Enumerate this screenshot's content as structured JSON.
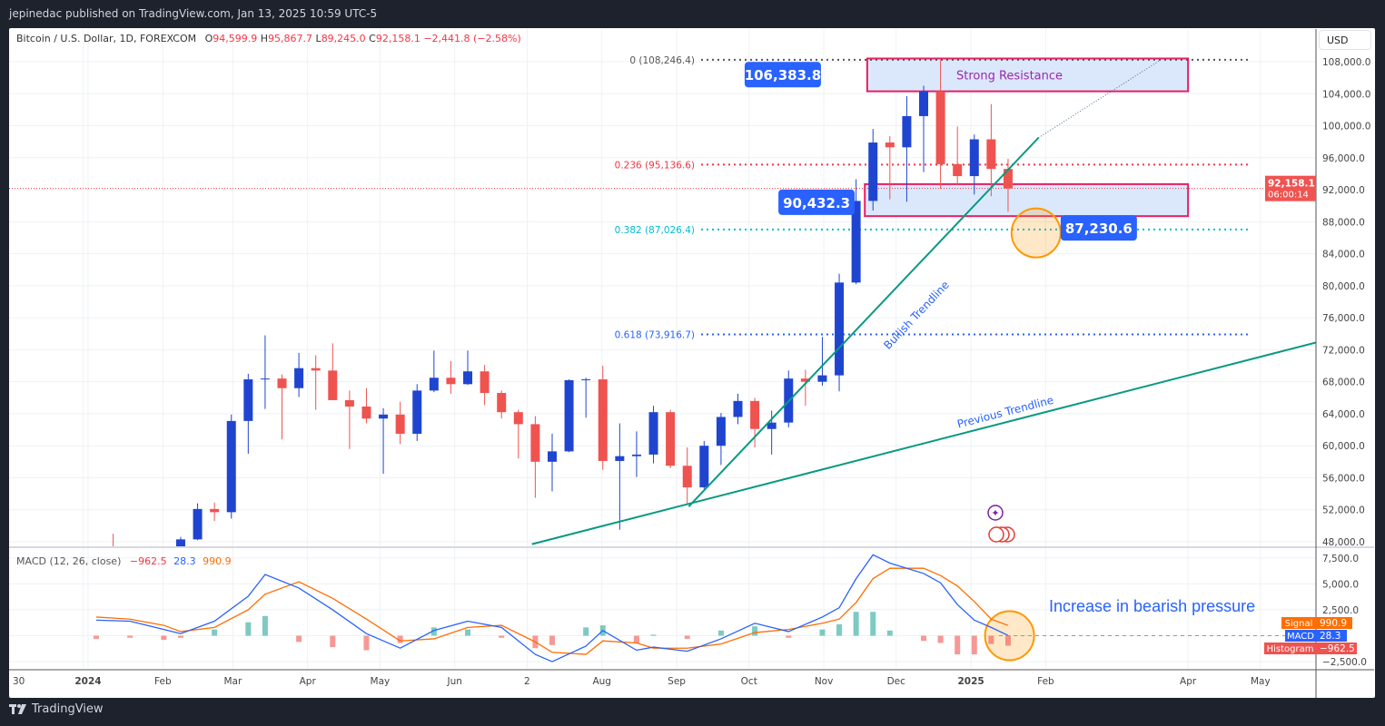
{
  "header": {
    "published": "jepinedac published on TradingView.com, Jan 13, 2025 10:59 UTC-5"
  },
  "legend": {
    "symbol": "Bitcoin / U.S. Dollar, 1D, FOREXCOM",
    "o_label": "O",
    "o": "94,599.9",
    "h_label": "H",
    "h": "95,867.7",
    "l_label": "L",
    "l": "89,245.0",
    "c_label": "C",
    "c": "92,158.1",
    "change": "−2,441.8 (−2.58%)"
  },
  "macd_legend": {
    "title": "MACD (12, 26, close)",
    "histogram": "−962.5",
    "macd": "28.3",
    "signal": "990.9"
  },
  "price_axis": {
    "currency": "USD",
    "ticks": [
      "108,000.0",
      "104,000.0",
      "100,000.0",
      "96,000.0",
      "92,000.0",
      "88,000.0",
      "84,000.0",
      "80,000.0",
      "76,000.0",
      "72,000.0",
      "68,000.0",
      "64,000.0",
      "60,000.0",
      "56,000.0",
      "52,000.0",
      "48,000.0"
    ],
    "last_price": "92,158.1",
    "countdown": "06:00:14"
  },
  "macd_axis": {
    "ticks": [
      "7,500.0",
      "5,000.0",
      "2,500.0",
      "−2,500.0"
    ],
    "tags": [
      {
        "label": "Signal",
        "value": "990.9"
      },
      {
        "label": "MACD",
        "value": "28.3"
      },
      {
        "label": "Histogram",
        "value": "−962.5"
      }
    ]
  },
  "time_axis": {
    "labels": [
      [
        "30",
        "2023-12-30"
      ],
      [
        "2024",
        "2024-01-01"
      ],
      [
        "Feb",
        "2024-02-01"
      ],
      [
        "Mar",
        "2024-03-01"
      ],
      [
        "Apr",
        "2024-04-01"
      ],
      [
        "May",
        "2024-05-01"
      ],
      [
        "Jun",
        "2024-06-01"
      ],
      [
        "2",
        "2024-07-01"
      ],
      [
        "Aug",
        "2024-08-01"
      ],
      [
        "Sep",
        "2024-09-01"
      ],
      [
        "Oct",
        "2024-10-01"
      ],
      [
        "Nov",
        "2024-11-01"
      ],
      [
        "Dec",
        "2024-12-01"
      ],
      [
        "2025",
        "2025-01-01"
      ],
      [
        "Feb",
        "2025-02-01"
      ],
      [
        "Apr",
        "2025-04-01"
      ],
      [
        "May",
        "2025-05-01"
      ]
    ]
  },
  "footer": {
    "brand": "TradingView"
  },
  "colors": {
    "up": "#1f45d0",
    "down": "#ef5350",
    "macd": "#2962ff",
    "signal": "#ff6d00",
    "hist_up": "#26a69a",
    "hist_down": "#ef5350",
    "trendline": "#089981",
    "box_border": "#e91e63",
    "box_fill": "#dbe8fb",
    "fib0": "#555555",
    "fib236": "#f23645",
    "fib382": "#00bcd4",
    "fib618": "#2962ff",
    "tag_blue": "#2962ff",
    "circle": "#ff9800"
  },
  "chart_data": {
    "type": "candlestick",
    "interval_shown": "1D",
    "ylim": [
      48000,
      108000
    ],
    "grid": true,
    "candles_weekly_ohlc": [
      [
        "2024-01-01",
        42300,
        45900,
        40700,
        43900
      ],
      [
        "2024-01-08",
        43900,
        49000,
        41500,
        41700
      ],
      [
        "2024-01-15",
        41700,
        43200,
        40300,
        41600
      ],
      [
        "2024-01-22",
        41600,
        42200,
        38500,
        42000
      ],
      [
        "2024-01-29",
        42000,
        43800,
        41800,
        42600
      ],
      [
        "2024-02-05",
        42600,
        48600,
        42300,
        48300
      ],
      [
        "2024-02-12",
        48300,
        52800,
        48200,
        52100
      ],
      [
        "2024-02-19",
        52100,
        52900,
        50600,
        51700
      ],
      [
        "2024-02-26",
        51700,
        63900,
        50900,
        63100
      ],
      [
        "2024-03-04",
        63100,
        69000,
        59000,
        68300
      ],
      [
        "2024-03-11",
        68300,
        73800,
        64600,
        68400
      ],
      [
        "2024-03-18",
        68400,
        68900,
        60800,
        67200
      ],
      [
        "2024-03-25",
        67200,
        71600,
        66100,
        69700
      ],
      [
        "2024-04-01",
        69700,
        71300,
        64500,
        69400
      ],
      [
        "2024-04-08",
        69400,
        72800,
        67500,
        65700
      ],
      [
        "2024-04-15",
        65700,
        66900,
        59600,
        64900
      ],
      [
        "2024-04-22",
        64900,
        67200,
        62800,
        63400
      ],
      [
        "2024-04-29",
        63400,
        64700,
        56500,
        63900
      ],
      [
        "2024-05-06",
        63900,
        65500,
        60200,
        61500
      ],
      [
        "2024-05-13",
        61500,
        67700,
        60600,
        66900
      ],
      [
        "2024-05-20",
        66900,
        71900,
        66700,
        68500
      ],
      [
        "2024-05-27",
        68500,
        70600,
        66500,
        67700
      ],
      [
        "2024-06-03",
        67700,
        71900,
        67600,
        69300
      ],
      [
        "2024-06-10",
        69300,
        70100,
        65100,
        66600
      ],
      [
        "2024-06-17",
        66600,
        66900,
        63400,
        64200
      ],
      [
        "2024-06-24",
        64200,
        64500,
        58400,
        62700
      ],
      [
        "2024-07-01",
        62700,
        63700,
        53500,
        58000
      ],
      [
        "2024-07-08",
        58000,
        61500,
        54300,
        59300
      ],
      [
        "2024-07-15",
        59300,
        68300,
        59200,
        68200
      ],
      [
        "2024-07-22",
        68200,
        68500,
        63500,
        68300
      ],
      [
        "2024-07-29",
        68300,
        70000,
        57000,
        58100
      ],
      [
        "2024-08-05",
        58100,
        62800,
        49500,
        58700
      ],
      [
        "2024-08-12",
        58700,
        61800,
        56100,
        58900
      ],
      [
        "2024-08-19",
        58900,
        65000,
        57800,
        64200
      ],
      [
        "2024-08-26",
        64200,
        64500,
        57200,
        57500
      ],
      [
        "2024-09-02",
        57500,
        59800,
        52600,
        54800
      ],
      [
        "2024-09-09",
        54800,
        60600,
        54600,
        60000
      ],
      [
        "2024-09-16",
        60000,
        64100,
        57600,
        63600
      ],
      [
        "2024-09-23",
        63600,
        66500,
        62700,
        65600
      ],
      [
        "2024-09-30",
        65600,
        66000,
        59800,
        62100
      ],
      [
        "2024-10-07",
        62100,
        64400,
        58900,
        62900
      ],
      [
        "2024-10-14",
        62900,
        69400,
        62300,
        68400
      ],
      [
        "2024-10-21",
        68400,
        69500,
        65000,
        68000
      ],
      [
        "2024-10-28",
        68000,
        73600,
        67500,
        68800
      ],
      [
        "2024-11-04",
        68800,
        81500,
        66800,
        80400
      ],
      [
        "2024-11-11",
        80400,
        93300,
        80200,
        90600
      ],
      [
        "2024-11-18",
        90600,
        99600,
        89400,
        97900
      ],
      [
        "2024-11-25",
        97900,
        98700,
        90800,
        97300
      ],
      [
        "2024-12-02",
        97300,
        103700,
        90500,
        101200
      ],
      [
        "2024-12-09",
        101200,
        105000,
        94200,
        104300
      ],
      [
        "2024-12-16",
        104300,
        108200,
        92100,
        95200
      ],
      [
        "2024-12-23",
        95200,
        99900,
        92600,
        93700
      ],
      [
        "2024-12-30",
        93700,
        98900,
        91400,
        98300
      ],
      [
        "2025-01-06",
        98300,
        102700,
        91200,
        94600
      ],
      [
        "2025-01-13",
        94600,
        95867.7,
        89245,
        92158.1
      ]
    ],
    "last_price": 92158.1,
    "fib_levels": [
      {
        "ratio": "0",
        "price": 108246.4,
        "label": "0 (108,246.4)",
        "color_key": "fib0"
      },
      {
        "ratio": "0.236",
        "price": 95136.6,
        "label": "0.236 (95,136.6)",
        "color_key": "fib236"
      },
      {
        "ratio": "0.382",
        "price": 87026.4,
        "label": "0.382 (87,026.4)",
        "color_key": "fib382"
      },
      {
        "ratio": "0.618",
        "price": 73916.7,
        "label": "0.618 (73,916.7)",
        "color_key": "fib618"
      }
    ],
    "zones": [
      {
        "label": "Strong Resistance",
        "from": "2024-11-19",
        "to": "2025-04-01",
        "top": 108400,
        "bottom": 104300
      },
      {
        "label": "",
        "from": "2024-11-18",
        "to": "2025-04-01",
        "top": 92700,
        "bottom": 88700
      }
    ],
    "trendlines": [
      {
        "label": "Bullish Trendline",
        "from": [
          "2024-09-06",
          52400
        ],
        "to": [
          "2025-01-29",
          98500
        ],
        "extend_to": [
          "2025-03-20",
          108100
        ]
      },
      {
        "label": "Previous Trendline",
        "from": [
          "2024-07-03",
          47700
        ],
        "to": [
          "2025-05-24",
          72900
        ]
      }
    ],
    "price_tags": [
      {
        "text": "106,383.8",
        "date": "2024-10-15",
        "price": 106383.8
      },
      {
        "text": "90,432.3",
        "date": "2024-10-29",
        "price": 90432.3
      },
      {
        "text": "87,230.6",
        "date": "2025-02-23",
        "price": 87230.6
      }
    ],
    "highlight_circles": [
      {
        "pane": "price",
        "date": "2025-01-28",
        "value": 86600
      },
      {
        "pane": "macd",
        "date": "2025-01-17",
        "value": 0
      }
    ],
    "annotation_text": "Increase in bearish pressure",
    "macd": {
      "params": "12, 26, close",
      "ylim": [
        -2500,
        7500
      ],
      "weeks": [
        "2024-01-01",
        "2024-01-15",
        "2024-01-29",
        "2024-02-05",
        "2024-02-19",
        "2024-03-04",
        "2024-03-11",
        "2024-03-25",
        "2024-04-08",
        "2024-04-22",
        "2024-05-06",
        "2024-05-20",
        "2024-06-03",
        "2024-06-17",
        "2024-07-01",
        "2024-07-08",
        "2024-07-22",
        "2024-07-29",
        "2024-08-12",
        "2024-08-19",
        "2024-09-02",
        "2024-09-16",
        "2024-09-30",
        "2024-10-14",
        "2024-10-28",
        "2024-11-04",
        "2024-11-11",
        "2024-11-18",
        "2024-11-25",
        "2024-12-09",
        "2024-12-16",
        "2024-12-23",
        "2024-12-30",
        "2025-01-06",
        "2025-01-13"
      ],
      "macd_line": [
        1500,
        1400,
        600,
        200,
        1400,
        3800,
        5900,
        4600,
        2500,
        200,
        -1200,
        500,
        1400,
        800,
        -1800,
        -2500,
        -1000,
        500,
        -1400,
        -1100,
        -1500,
        -300,
        1200,
        400,
        1800,
        2700,
        5500,
        7800,
        7000,
        6000,
        5100,
        3000,
        1500,
        800,
        28.3
      ],
      "signal_line": [
        1800,
        1600,
        1000,
        400,
        800,
        2500,
        4000,
        5200,
        3600,
        1600,
        -500,
        -300,
        800,
        1000,
        -600,
        -1600,
        -1800,
        -500,
        -700,
        -1200,
        -1200,
        -800,
        300,
        600,
        1200,
        1600,
        3200,
        5500,
        6500,
        6500,
        5800,
        4800,
        3300,
        1600,
        990.9
      ]
    }
  }
}
